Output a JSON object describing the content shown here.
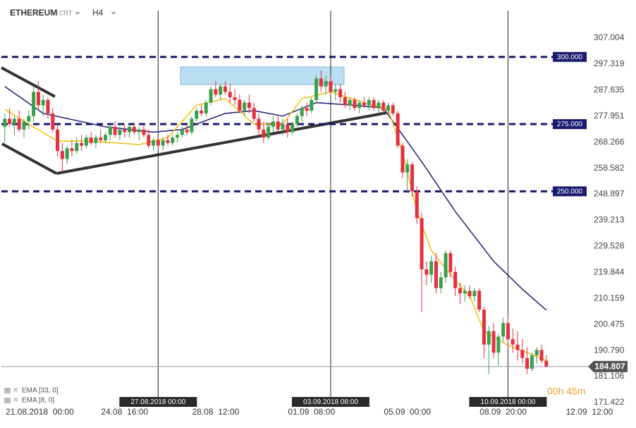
{
  "header": {
    "symbol": "ETHEREUM",
    "type": "CRT",
    "timeframe": "H4"
  },
  "countdown": "00h 45m",
  "chart_data": {
    "type": "candlestick",
    "up_color": "#3a9f4a",
    "down_color": "#e5303f",
    "candles": [
      [
        274,
        279,
        268,
        277
      ],
      [
        277,
        281,
        274,
        275
      ],
      [
        275,
        278,
        271,
        277
      ],
      [
        277,
        280,
        272,
        273
      ],
      [
        273,
        277,
        270,
        276
      ],
      [
        276,
        280,
        273,
        278
      ],
      [
        278,
        289,
        276,
        287
      ],
      [
        287,
        291,
        280,
        282
      ],
      [
        282,
        286,
        278,
        284
      ],
      [
        284,
        285,
        277,
        279
      ],
      [
        279,
        281,
        272,
        273
      ],
      [
        273,
        275,
        263,
        265
      ],
      [
        265,
        268,
        257,
        262
      ],
      [
        262,
        267,
        260,
        266
      ],
      [
        266,
        269,
        263,
        265
      ],
      [
        265,
        270,
        264,
        268
      ],
      [
        268,
        271,
        265,
        267
      ],
      [
        267,
        271,
        266,
        270
      ],
      [
        270,
        272,
        267,
        268
      ],
      [
        268,
        271,
        266,
        270
      ],
      [
        270,
        273,
        268,
        269
      ],
      [
        269,
        272,
        268,
        271
      ],
      [
        271,
        275,
        269,
        274
      ],
      [
        274,
        276,
        270,
        271
      ],
      [
        271,
        274,
        269,
        273
      ],
      [
        273,
        275,
        270,
        272
      ],
      [
        272,
        275,
        270,
        274
      ],
      [
        274,
        275,
        271,
        272
      ],
      [
        272,
        274,
        269,
        273
      ],
      [
        273,
        275,
        270,
        271
      ],
      [
        271,
        273,
        266,
        267
      ],
      [
        267,
        270,
        265,
        269
      ],
      [
        269,
        271,
        266,
        267
      ],
      [
        267,
        270,
        265,
        269
      ],
      [
        269,
        271,
        267,
        268
      ],
      [
        268,
        271,
        267,
        270
      ],
      [
        270,
        272,
        268,
        271
      ],
      [
        271,
        274,
        270,
        273
      ],
      [
        273,
        275,
        271,
        272
      ],
      [
        272,
        278,
        271,
        277
      ],
      [
        277,
        281,
        276,
        280
      ],
      [
        280,
        282,
        278,
        279
      ],
      [
        279,
        284,
        278,
        283
      ],
      [
        283,
        289,
        282,
        288
      ],
      [
        288,
        291,
        285,
        286
      ],
      [
        286,
        290,
        284,
        289
      ],
      [
        289,
        291,
        286,
        287
      ],
      [
        287,
        290,
        283,
        285
      ],
      [
        285,
        288,
        282,
        284
      ],
      [
        284,
        286,
        279,
        280
      ],
      [
        280,
        284,
        278,
        283
      ],
      [
        283,
        286,
        279,
        281
      ],
      [
        281,
        283,
        276,
        277
      ],
      [
        277,
        279,
        271,
        273
      ],
      [
        273,
        276,
        268,
        270
      ],
      [
        270,
        275,
        269,
        274
      ],
      [
        274,
        278,
        272,
        276
      ],
      [
        276,
        278,
        272,
        273
      ],
      [
        273,
        277,
        271,
        275
      ],
      [
        275,
        277,
        270,
        272
      ],
      [
        272,
        276,
        271,
        275
      ],
      [
        275,
        279,
        274,
        278
      ],
      [
        278,
        282,
        276,
        281
      ],
      [
        281,
        283,
        278,
        280
      ],
      [
        280,
        285,
        279,
        284
      ],
      [
        284,
        293,
        283,
        292
      ],
      [
        292,
        295,
        287,
        289
      ],
      [
        289,
        293,
        286,
        291
      ],
      [
        291,
        293,
        286,
        287
      ],
      [
        287,
        290,
        284,
        288
      ],
      [
        288,
        290,
        283,
        285
      ],
      [
        285,
        287,
        281,
        282
      ],
      [
        282,
        285,
        280,
        284
      ],
      [
        284,
        285,
        280,
        281
      ],
      [
        281,
        284,
        279,
        283
      ],
      [
        283,
        285,
        281,
        282
      ],
      [
        282,
        285,
        280,
        284
      ],
      [
        284,
        285,
        280,
        281
      ],
      [
        281,
        284,
        279,
        283
      ],
      [
        283,
        284,
        279,
        280
      ],
      [
        280,
        283,
        279,
        282
      ],
      [
        282,
        283,
        278,
        279
      ],
      [
        279,
        280,
        266,
        267
      ],
      [
        267,
        268,
        255,
        257
      ],
      [
        257,
        262,
        250,
        260
      ],
      [
        260,
        261,
        248,
        250
      ],
      [
        250,
        252,
        238,
        240
      ],
      [
        240,
        242,
        205,
        221
      ],
      [
        221,
        224,
        215,
        219
      ],
      [
        219,
        226,
        216,
        224
      ],
      [
        224,
        227,
        212,
        214
      ],
      [
        214,
        220,
        212,
        218
      ],
      [
        218,
        228,
        216,
        227
      ],
      [
        227,
        228,
        218,
        220
      ],
      [
        220,
        222,
        211,
        214
      ],
      [
        214,
        216,
        208,
        212
      ],
      [
        212,
        215,
        209,
        213
      ],
      [
        213,
        215,
        210,
        211
      ],
      [
        211,
        214,
        209,
        213
      ],
      [
        213,
        214,
        205,
        206
      ],
      [
        206,
        207,
        188,
        193
      ],
      [
        193,
        200,
        182,
        198
      ],
      [
        198,
        201,
        188,
        190
      ],
      [
        190,
        197,
        185,
        196
      ],
      [
        196,
        203,
        194,
        201
      ],
      [
        201,
        204,
        192,
        195
      ],
      [
        195,
        199,
        190,
        193
      ],
      [
        193,
        198,
        187,
        191
      ],
      [
        191,
        195,
        186,
        188
      ],
      [
        188,
        192,
        182,
        184
      ],
      [
        184,
        190,
        183,
        189
      ],
      [
        189,
        192,
        186,
        191
      ],
      [
        191,
        193,
        186,
        187
      ],
      [
        187,
        189,
        184.5,
        184.807
      ]
    ],
    "xlim": [
      -1,
      122
    ],
    "xticks": [
      {
        "value": 0,
        "label": "21.08.2018  00:00"
      },
      {
        "value": 25,
        "label": "24.08  16:00"
      },
      {
        "value": 44,
        "label": "28.08  12:00"
      },
      {
        "value": 64,
        "label": "01.09  08:00"
      },
      {
        "value": 84,
        "label": "05.09  00:00"
      },
      {
        "value": 104,
        "label": "08.09  20:00"
      },
      {
        "value": 122,
        "label": "12.09  12:00"
      }
    ],
    "ylim": [
      166.43,
      321.17
    ],
    "yticks": [
      307.004,
      297.319,
      287.635,
      277.951,
      268.266,
      258.582,
      248.897,
      239.213,
      229.528,
      219.844,
      210.159,
      200.475,
      {
        "value": 190.79,
        "label": "190.790"
      },
      181.106,
      171.422
    ],
    "series": [
      {
        "name": "EMA [33, 0]",
        "color": "#2b2a7a",
        "x": [
          0,
          8,
          21,
          31,
          37,
          46,
          52,
          58,
          65,
          73,
          79,
          87,
          94,
          102,
          108,
          113
        ],
        "values": [
          289,
          279,
          274,
          272,
          273,
          279,
          280,
          278,
          283,
          282,
          281,
          261,
          242.5,
          224,
          213.6,
          205.8
        ]
      },
      {
        "name": "EMA [8, 0]",
        "color": "#f2c21b",
        "x": [
          0,
          5,
          11,
          18,
          28,
          34,
          40,
          46,
          52,
          58,
          62,
          68,
          75,
          80,
          83,
          86,
          89,
          93,
          97,
          100,
          105,
          109,
          113
        ],
        "values": [
          280.5,
          275,
          268.7,
          268.7,
          267.4,
          270,
          282,
          284.5,
          275,
          275,
          284.5,
          287,
          283,
          280.5,
          264.8,
          242.5,
          228,
          219,
          211,
          198,
          192.7,
          190,
          187
        ]
      }
    ],
    "levels": [
      {
        "value": 300,
        "label": "300.000"
      },
      {
        "value": 275,
        "label": "275.000"
      },
      {
        "value": 250,
        "label": "250.000"
      }
    ],
    "level_color": "#1a1a6e",
    "markers": [
      {
        "value": 32,
        "label": "27.08.2018 00:00"
      },
      {
        "value": 68,
        "label": "03.09.2018 08:00"
      },
      {
        "value": 105,
        "label": "10.09.2018 00:00"
      }
    ],
    "last_price": 184.807
  }
}
